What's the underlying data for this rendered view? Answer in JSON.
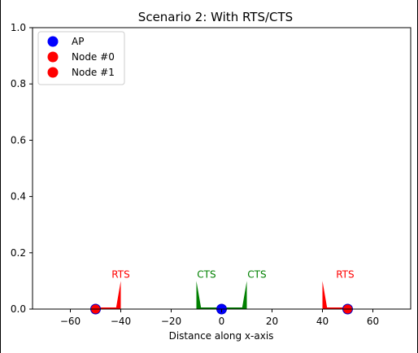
{
  "chart_data": {
    "type": "scatter",
    "title": "Scenario 2: With RTS/CTS",
    "xlabel": "Distance along x-axis",
    "ylabel": "",
    "xlim": [
      -75,
      75
    ],
    "ylim": [
      0,
      1.0
    ],
    "grid": false,
    "legend_position": "upper-left",
    "xticks": [
      -60,
      -40,
      -20,
      0,
      20,
      40,
      60
    ],
    "xtick_labels": [
      "−60",
      "−40",
      "−20",
      "0",
      "20",
      "40",
      "60"
    ],
    "yticks": [
      0,
      0.2,
      0.4,
      0.6,
      0.8,
      1.0
    ],
    "ytick_labels": [
      "0.0",
      "0.2",
      "0.4",
      "0.6",
      "0.8",
      "1.0"
    ],
    "series": [
      {
        "name": "AP",
        "color": "#0000ff",
        "marker": "circle",
        "points": [
          {
            "x": 0,
            "y": 0
          }
        ]
      },
      {
        "name": "Node #0",
        "color": "#ff0000",
        "marker": "circle",
        "points": [
          {
            "x": -50,
            "y": 0
          }
        ]
      },
      {
        "name": "Node #1",
        "color": "#ff0000",
        "marker": "circle",
        "points": [
          {
            "x": 50,
            "y": 0
          }
        ]
      }
    ],
    "signals": [
      {
        "label": "RTS",
        "color": "#ff0000",
        "from": -50,
        "peak_x": -40,
        "peak_y": 0.1,
        "label_x": -40,
        "label_y": 0.1
      },
      {
        "label": "CTS",
        "color": "#008000",
        "from": 0,
        "peak_x": -10,
        "peak_y": 0.1,
        "label_x": -6,
        "label_y": 0.1
      },
      {
        "label": "CTS",
        "color": "#008000",
        "from": 0,
        "peak_x": 10,
        "peak_y": 0.1,
        "label_x": 14,
        "label_y": 0.1
      },
      {
        "label": "RTS",
        "color": "#ff0000",
        "from": 50,
        "peak_x": 40,
        "peak_y": 0.1,
        "label_x": 49,
        "label_y": 0.1
      }
    ]
  }
}
